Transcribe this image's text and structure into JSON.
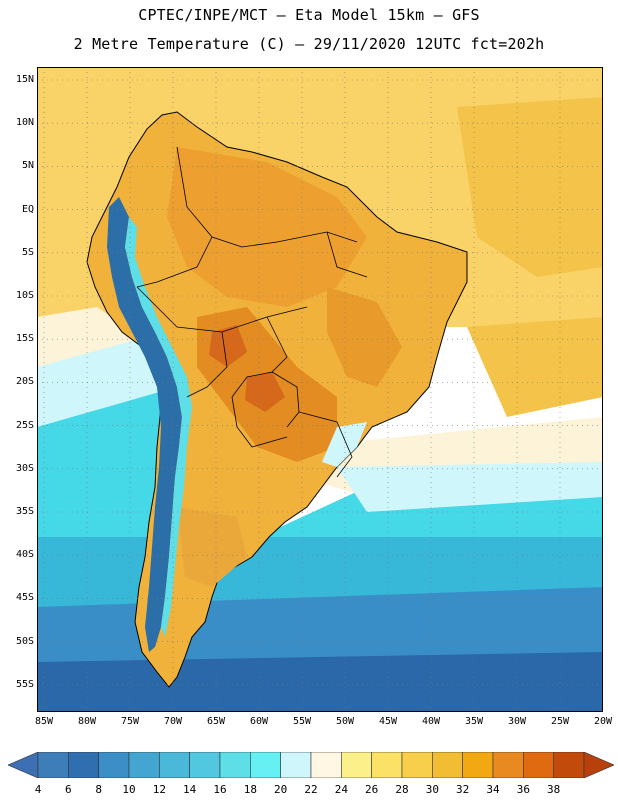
{
  "header": {
    "line1": "CPTEC/INPE/MCT –  Eta Model 15km – GFS",
    "line2": "2 Metre Temperature (C) – 29/11/2020 12UTC fct=202h"
  },
  "map": {
    "lat_labels": [
      "15N",
      "10N",
      "5N",
      "EQ",
      "5S",
      "10S",
      "15S",
      "20S",
      "25S",
      "30S",
      "35S",
      "40S",
      "45S",
      "50S",
      "55S"
    ],
    "lon_labels": [
      "85W",
      "80W",
      "75W",
      "70W",
      "65W",
      "60W",
      "55W",
      "50W",
      "45W",
      "40W",
      "35W",
      "30W",
      "25W",
      "20W"
    ],
    "colors": {
      "ocean_tropical": "#f9d268",
      "ocean_warm": "#f4c44a",
      "ocean_sub": "#fdf3d8",
      "ocean_mid": "#45d8e6",
      "ocean_cool": "#38b8d8",
      "ocean_cold": "#3a8ec8",
      "ocean_polar": "#2a68aa",
      "land_warm": "#f0b23a",
      "land_hot": "#e28c22",
      "land_hotspot": "#d6681c",
      "andes": "#2c6ea8",
      "border": "#000000"
    }
  },
  "colorbar": {
    "ticks": [
      "4",
      "6",
      "8",
      "10",
      "12",
      "14",
      "16",
      "18",
      "20",
      "22",
      "24",
      "26",
      "28",
      "30",
      "32",
      "34",
      "36",
      "38"
    ],
    "colors": [
      "#3d7db8",
      "#2f6eaf",
      "#3b8ec6",
      "#43a6d1",
      "#4ab8d8",
      "#52c8e0",
      "#5edfe8",
      "#66f0f4",
      "#cff6fb",
      "#fff7e3",
      "#fcf08a",
      "#fbe266",
      "#f7cf4a",
      "#f0bd33",
      "#f2a812",
      "#e98a20",
      "#df6a10",
      "#c24a0a"
    ],
    "left_arrow": "#3d6fb5",
    "right_arrow": "#b8400c"
  }
}
